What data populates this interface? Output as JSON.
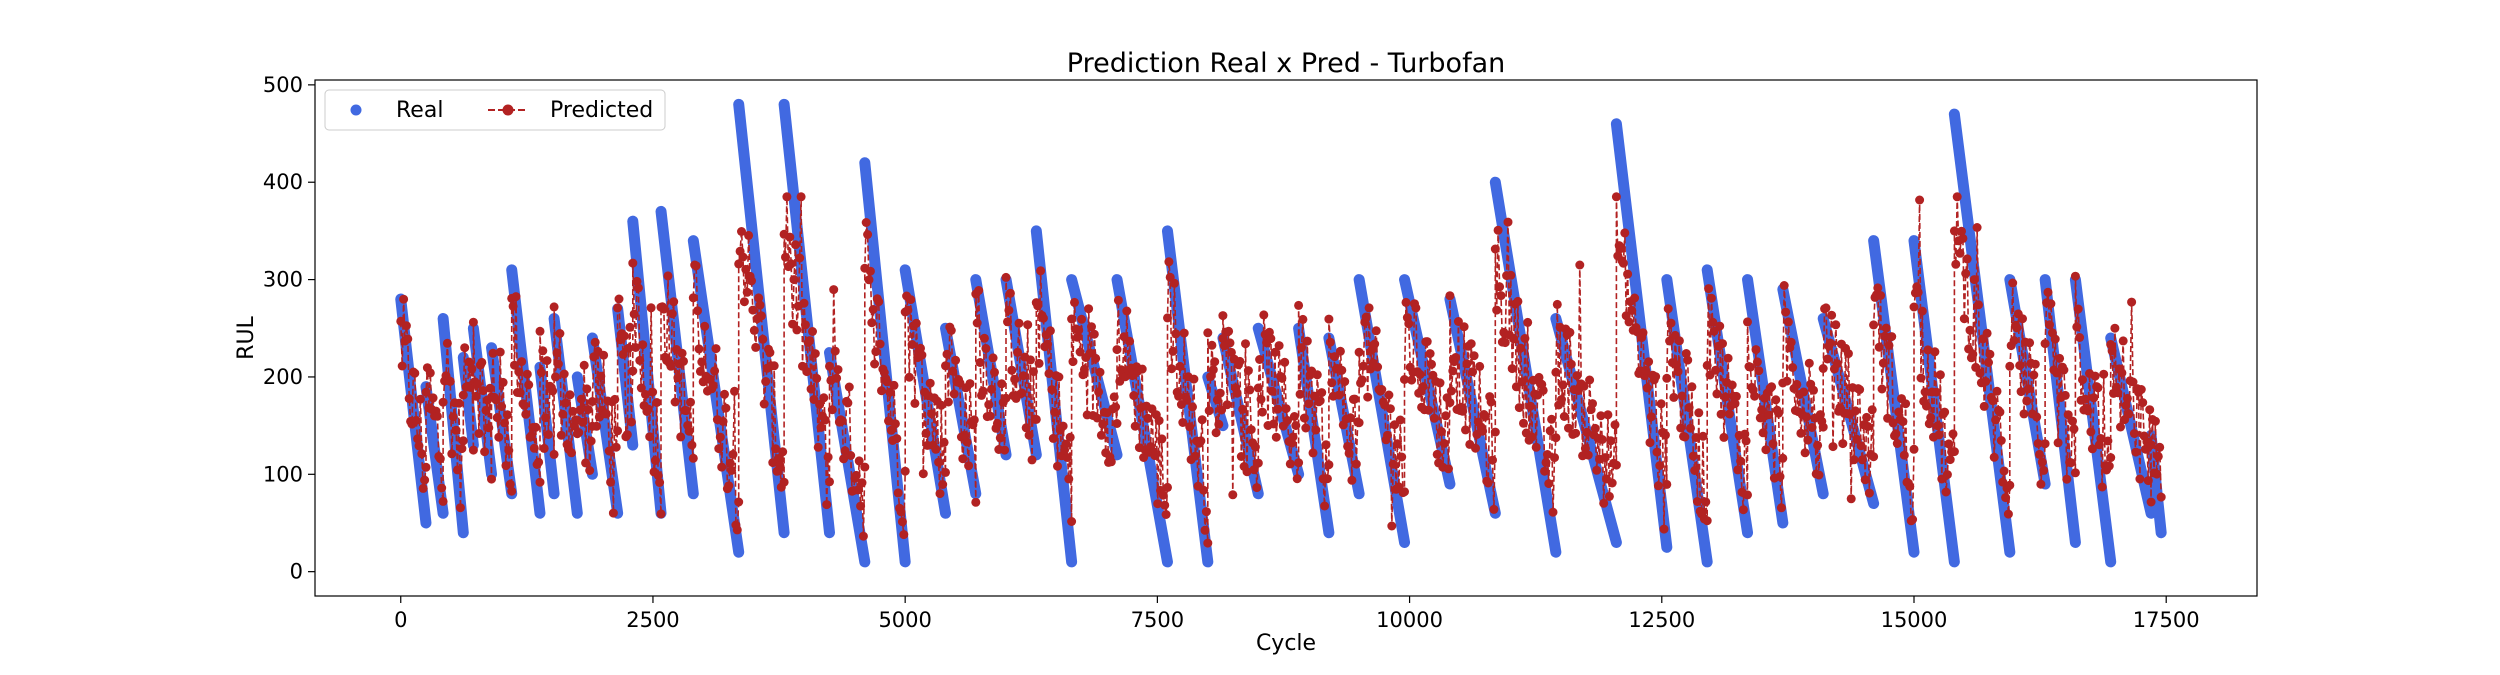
{
  "chart_data": {
    "type": "line",
    "title": "Prediction Real x Pred - Turbofan",
    "xlabel": "Cycle",
    "ylabel": "RUL",
    "xlim": [
      -850,
      18400
    ],
    "ylim": [
      -25,
      505
    ],
    "xticks": [
      0,
      2500,
      5000,
      7500,
      10000,
      12500,
      15000,
      17500
    ],
    "xtick_labels": [
      "0",
      "2500",
      "5000",
      "7500",
      "10000",
      "12500",
      "15000",
      "17500"
    ],
    "yticks": [
      0,
      100,
      200,
      300,
      400,
      500
    ],
    "ytick_labels": [
      "0",
      "100",
      "200",
      "300",
      "400",
      "500"
    ],
    "grid": false,
    "legend_position": "top-left",
    "series": [
      {
        "name": "Real",
        "color": "#4169e1",
        "style": "markers"
      },
      {
        "name": "Predicted",
        "color": "#b22222",
        "style": "dashed-line-markers"
      }
    ],
    "real_segments": [
      [
        0,
        280,
        250,
        50
      ],
      [
        250,
        190,
        420,
        60
      ],
      [
        420,
        260,
        620,
        40
      ],
      [
        620,
        220,
        720,
        130
      ],
      [
        720,
        250,
        900,
        100
      ],
      [
        900,
        230,
        1100,
        80
      ],
      [
        1100,
        310,
        1380,
        60
      ],
      [
        1380,
        210,
        1520,
        80
      ],
      [
        1520,
        260,
        1750,
        60
      ],
      [
        1750,
        200,
        1900,
        100
      ],
      [
        1900,
        240,
        2150,
        60
      ],
      [
        2150,
        270,
        2300,
        130
      ],
      [
        2300,
        360,
        2580,
        60
      ],
      [
        2580,
        370,
        2900,
        80
      ],
      [
        2900,
        340,
        3350,
        20
      ],
      [
        3350,
        480,
        3800,
        40
      ],
      [
        3800,
        480,
        4250,
        40
      ],
      [
        4250,
        225,
        4600,
        10
      ],
      [
        4600,
        420,
        5000,
        10
      ],
      [
        5000,
        310,
        5400,
        60
      ],
      [
        5400,
        250,
        5700,
        80
      ],
      [
        5700,
        300,
        6000,
        120
      ],
      [
        6000,
        300,
        6300,
        120
      ],
      [
        6300,
        350,
        6650,
        10
      ],
      [
        6650,
        300,
        7100,
        120
      ],
      [
        7100,
        300,
        7600,
        10
      ],
      [
        7600,
        350,
        8000,
        10
      ],
      [
        8000,
        200,
        8150,
        150
      ],
      [
        8150,
        240,
        8500,
        80
      ],
      [
        8500,
        250,
        8900,
        100
      ],
      [
        8900,
        250,
        9200,
        40
      ],
      [
        9200,
        240,
        9500,
        80
      ],
      [
        9500,
        300,
        9950,
        30
      ],
      [
        9950,
        300,
        10400,
        90
      ],
      [
        10400,
        280,
        10850,
        60
      ],
      [
        10850,
        400,
        11450,
        20
      ],
      [
        11450,
        260,
        12050,
        30
      ],
      [
        12050,
        460,
        12550,
        25
      ],
      [
        12550,
        300,
        12950,
        10
      ],
      [
        12950,
        310,
        13350,
        40
      ],
      [
        13350,
        300,
        13700,
        50
      ],
      [
        13700,
        290,
        14100,
        80
      ],
      [
        14100,
        260,
        14600,
        70
      ],
      [
        14600,
        340,
        15000,
        20
      ],
      [
        15000,
        340,
        15400,
        10
      ],
      [
        15400,
        470,
        15950,
        20
      ],
      [
        15950,
        300,
        16300,
        90
      ],
      [
        16300,
        300,
        16600,
        30
      ],
      [
        16600,
        300,
        16950,
        10
      ],
      [
        16950,
        240,
        17350,
        60
      ],
      [
        17350,
        140,
        17450,
        40
      ]
    ]
  }
}
